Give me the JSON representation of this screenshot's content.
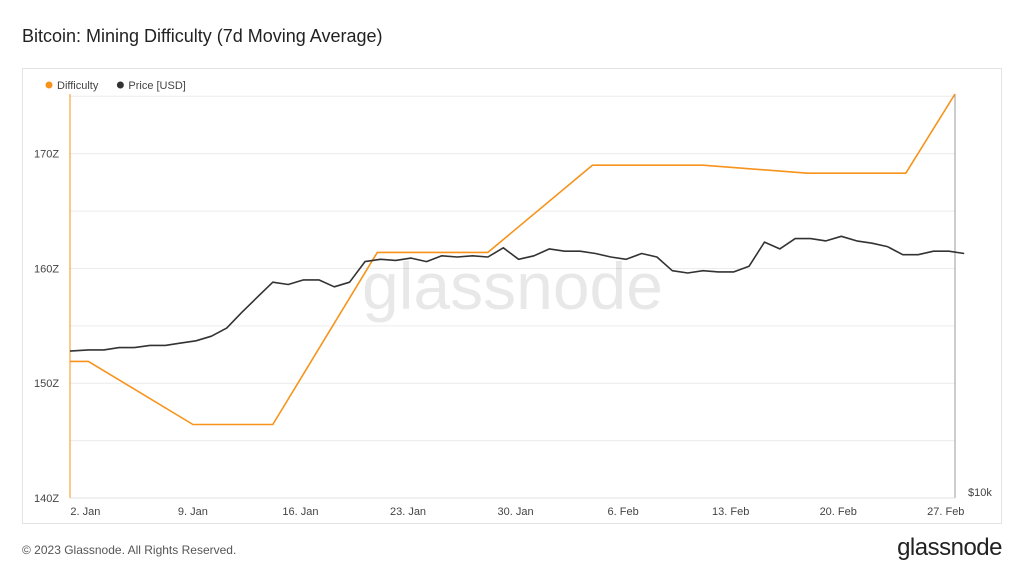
{
  "header": {
    "title": "Bitcoin: Mining Difficulty (7d Moving Average)"
  },
  "footer": {
    "copyright": "© 2023 Glassnode. All Rights Reserved.",
    "logo": "glassnode"
  },
  "watermark": "glassnode",
  "colors": {
    "difficulty": "#f7931a",
    "price": "#333333",
    "grid": "#ececec"
  },
  "chart_data": {
    "type": "line",
    "title": "Bitcoin: Mining Difficulty (7d Moving Average)",
    "legend_position": "top-left",
    "x_ticks": [
      "2. Jan",
      "9. Jan",
      "16. Jan",
      "23. Jan",
      "30. Jan",
      "6. Feb",
      "13. Feb",
      "20. Feb",
      "27. Feb"
    ],
    "x_range_days": [
      0.0,
      57.6
    ],
    "y_left": {
      "ticks": [
        "140Z",
        "150Z",
        "160Z",
        "170Z"
      ],
      "tick_values": [
        140,
        150,
        160,
        170
      ],
      "range": [
        140,
        175.2
      ],
      "unit": "Z"
    },
    "y_right": {
      "ticks": [
        "$10k"
      ]
    },
    "grid": true,
    "series": [
      {
        "name": "Difficulty",
        "axis": "left",
        "points": [
          [
            0.0,
            151.9
          ],
          [
            1.2,
            151.9
          ],
          [
            8.0,
            146.4
          ],
          [
            13.2,
            146.4
          ],
          [
            20.0,
            161.4
          ],
          [
            27.2,
            161.4
          ],
          [
            34.0,
            169.0
          ],
          [
            41.2,
            169.0
          ],
          [
            48.0,
            168.3
          ],
          [
            54.4,
            168.3
          ],
          [
            57.6,
            175.2
          ]
        ]
      },
      {
        "name": "Price [USD]",
        "axis": "left",
        "points": [
          [
            0.0,
            152.8
          ],
          [
            1.2,
            152.9
          ],
          [
            2.2,
            152.9
          ],
          [
            3.2,
            153.1
          ],
          [
            4.2,
            153.1
          ],
          [
            5.2,
            153.3
          ],
          [
            6.2,
            153.3
          ],
          [
            7.2,
            153.5
          ],
          [
            8.2,
            153.7
          ],
          [
            9.2,
            154.1
          ],
          [
            10.2,
            154.8
          ],
          [
            11.2,
            156.2
          ],
          [
            12.2,
            157.5
          ],
          [
            13.2,
            158.8
          ],
          [
            14.2,
            158.6
          ],
          [
            15.2,
            159.0
          ],
          [
            16.2,
            159.0
          ],
          [
            17.2,
            158.4
          ],
          [
            18.2,
            158.8
          ],
          [
            19.2,
            160.6
          ],
          [
            20.2,
            160.8
          ],
          [
            21.2,
            160.7
          ],
          [
            22.2,
            160.9
          ],
          [
            23.2,
            160.6
          ],
          [
            24.2,
            161.1
          ],
          [
            25.2,
            161.0
          ],
          [
            26.2,
            161.1
          ],
          [
            27.2,
            161.0
          ],
          [
            28.2,
            161.8
          ],
          [
            29.2,
            160.8
          ],
          [
            30.2,
            161.1
          ],
          [
            31.2,
            161.7
          ],
          [
            32.2,
            161.5
          ],
          [
            33.2,
            161.5
          ],
          [
            34.2,
            161.3
          ],
          [
            35.2,
            161.0
          ],
          [
            36.2,
            160.8
          ],
          [
            37.2,
            161.3
          ],
          [
            38.2,
            161.0
          ],
          [
            39.2,
            159.8
          ],
          [
            40.2,
            159.6
          ],
          [
            41.2,
            159.8
          ],
          [
            42.2,
            159.7
          ],
          [
            43.2,
            159.7
          ],
          [
            44.2,
            160.2
          ],
          [
            45.2,
            162.3
          ],
          [
            46.2,
            161.7
          ],
          [
            47.2,
            162.6
          ],
          [
            48.2,
            162.6
          ],
          [
            49.2,
            162.4
          ],
          [
            50.2,
            162.8
          ],
          [
            51.2,
            162.4
          ],
          [
            52.2,
            162.2
          ],
          [
            53.2,
            161.9
          ],
          [
            54.2,
            161.2
          ],
          [
            55.2,
            161.2
          ],
          [
            56.2,
            161.5
          ],
          [
            57.2,
            161.5
          ],
          [
            58.2,
            161.3
          ]
        ]
      }
    ]
  }
}
